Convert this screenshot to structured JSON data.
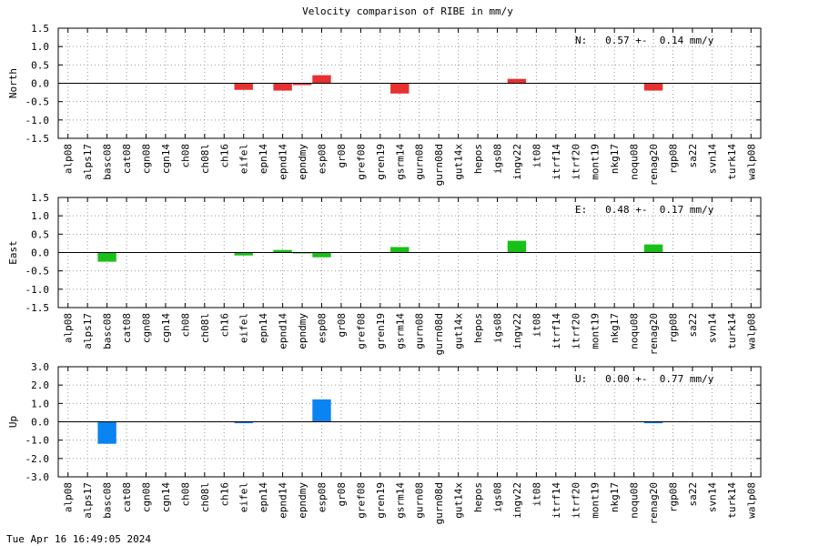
{
  "title": "Velocity comparison of RIBE in mm/y",
  "timestamp": "Tue Apr 16 16:49:05 2024",
  "chart_data": [
    {
      "type": "bar",
      "ylabel": "North",
      "annotation": "N:   0.57 +-  0.14 mm/y",
      "color": "#e83030",
      "ylim": [
        -1.5,
        1.5
      ],
      "yticks": [
        "-1.5",
        "-1.0",
        "-0.5",
        "0.0",
        "0.5",
        "1.0",
        "1.5"
      ],
      "grid": true,
      "categories": [
        "alp08",
        "alps17",
        "basc08",
        "cat08",
        "cgn08",
        "cgn14",
        "ch08",
        "ch08l",
        "ch16",
        "eifel",
        "epn14",
        "epnd14",
        "epndmy",
        "esp08",
        "gr08",
        "gref08",
        "gren19",
        "gsrm14",
        "gurn08",
        "gurn08d",
        "gut14x",
        "hepos",
        "igs08",
        "ingv22",
        "it08",
        "itrf14",
        "itrf20",
        "mont19",
        "nkg17",
        "noqu08",
        "renag20",
        "rgp08",
        "sa22",
        "svn14",
        "turk14",
        "walp08"
      ],
      "values": [
        0,
        0,
        0,
        0,
        0,
        0,
        0,
        0,
        0,
        -0.18,
        0,
        -0.2,
        -0.05,
        0.22,
        0,
        0,
        0,
        -0.28,
        0,
        0,
        0,
        0,
        0,
        0.12,
        0,
        0,
        0,
        0,
        0,
        0,
        -0.2,
        0,
        0,
        0,
        0,
        0
      ]
    },
    {
      "type": "bar",
      "ylabel": "East",
      "annotation": "E:   0.48 +-  0.17 mm/y",
      "color": "#18c018",
      "ylim": [
        -1.5,
        1.5
      ],
      "yticks": [
        "-1.5",
        "-1.0",
        "-0.5",
        "0.0",
        "0.5",
        "1.0",
        "1.5"
      ],
      "grid": true,
      "categories": [
        "alp08",
        "alps17",
        "basc08",
        "cat08",
        "cgn08",
        "cgn14",
        "ch08",
        "ch08l",
        "ch16",
        "eifel",
        "epn14",
        "epnd14",
        "epndmy",
        "esp08",
        "gr08",
        "gref08",
        "gren19",
        "gsrm14",
        "gurn08",
        "gurn08d",
        "gut14x",
        "hepos",
        "igs08",
        "ingv22",
        "it08",
        "itrf14",
        "itrf20",
        "mont19",
        "nkg17",
        "noqu08",
        "renag20",
        "rgp08",
        "sa22",
        "svn14",
        "turk14",
        "walp08"
      ],
      "values": [
        0,
        0,
        -0.25,
        0,
        0,
        0,
        0,
        0,
        0,
        -0.08,
        0,
        0.07,
        -0.02,
        -0.13,
        0,
        0,
        0,
        0.15,
        0,
        0,
        0,
        0,
        0,
        0.32,
        0,
        0,
        0,
        0,
        0,
        0,
        0.22,
        0,
        0,
        0,
        0,
        0
      ]
    },
    {
      "type": "bar",
      "ylabel": "Up",
      "annotation": "U:   0.00 +-  0.77 mm/y",
      "color": "#0a84f0",
      "ylim": [
        -3.0,
        3.0
      ],
      "yticks": [
        "-3.0",
        "-2.0",
        "-1.0",
        "0.0",
        "1.0",
        "2.0",
        "3.0"
      ],
      "grid": true,
      "categories": [
        "alp08",
        "alps17",
        "basc08",
        "cat08",
        "cgn08",
        "cgn14",
        "ch08",
        "ch08l",
        "ch16",
        "eifel",
        "epn14",
        "epnd14",
        "epndmy",
        "esp08",
        "gr08",
        "gref08",
        "gren19",
        "gsrm14",
        "gurn08",
        "gurn08d",
        "gut14x",
        "hepos",
        "igs08",
        "ingv22",
        "it08",
        "itrf14",
        "itrf20",
        "mont19",
        "nkg17",
        "noqu08",
        "renag20",
        "rgp08",
        "sa22",
        "svn14",
        "turk14",
        "walp08"
      ],
      "values": [
        0,
        0,
        -1.2,
        0,
        0,
        0,
        0,
        0,
        0,
        -0.08,
        0,
        0,
        0,
        1.22,
        0,
        0,
        0,
        0,
        0,
        0,
        0,
        0,
        0,
        0,
        0,
        0,
        0,
        0,
        0,
        0,
        -0.08,
        0,
        0,
        0,
        0,
        0
      ]
    }
  ]
}
